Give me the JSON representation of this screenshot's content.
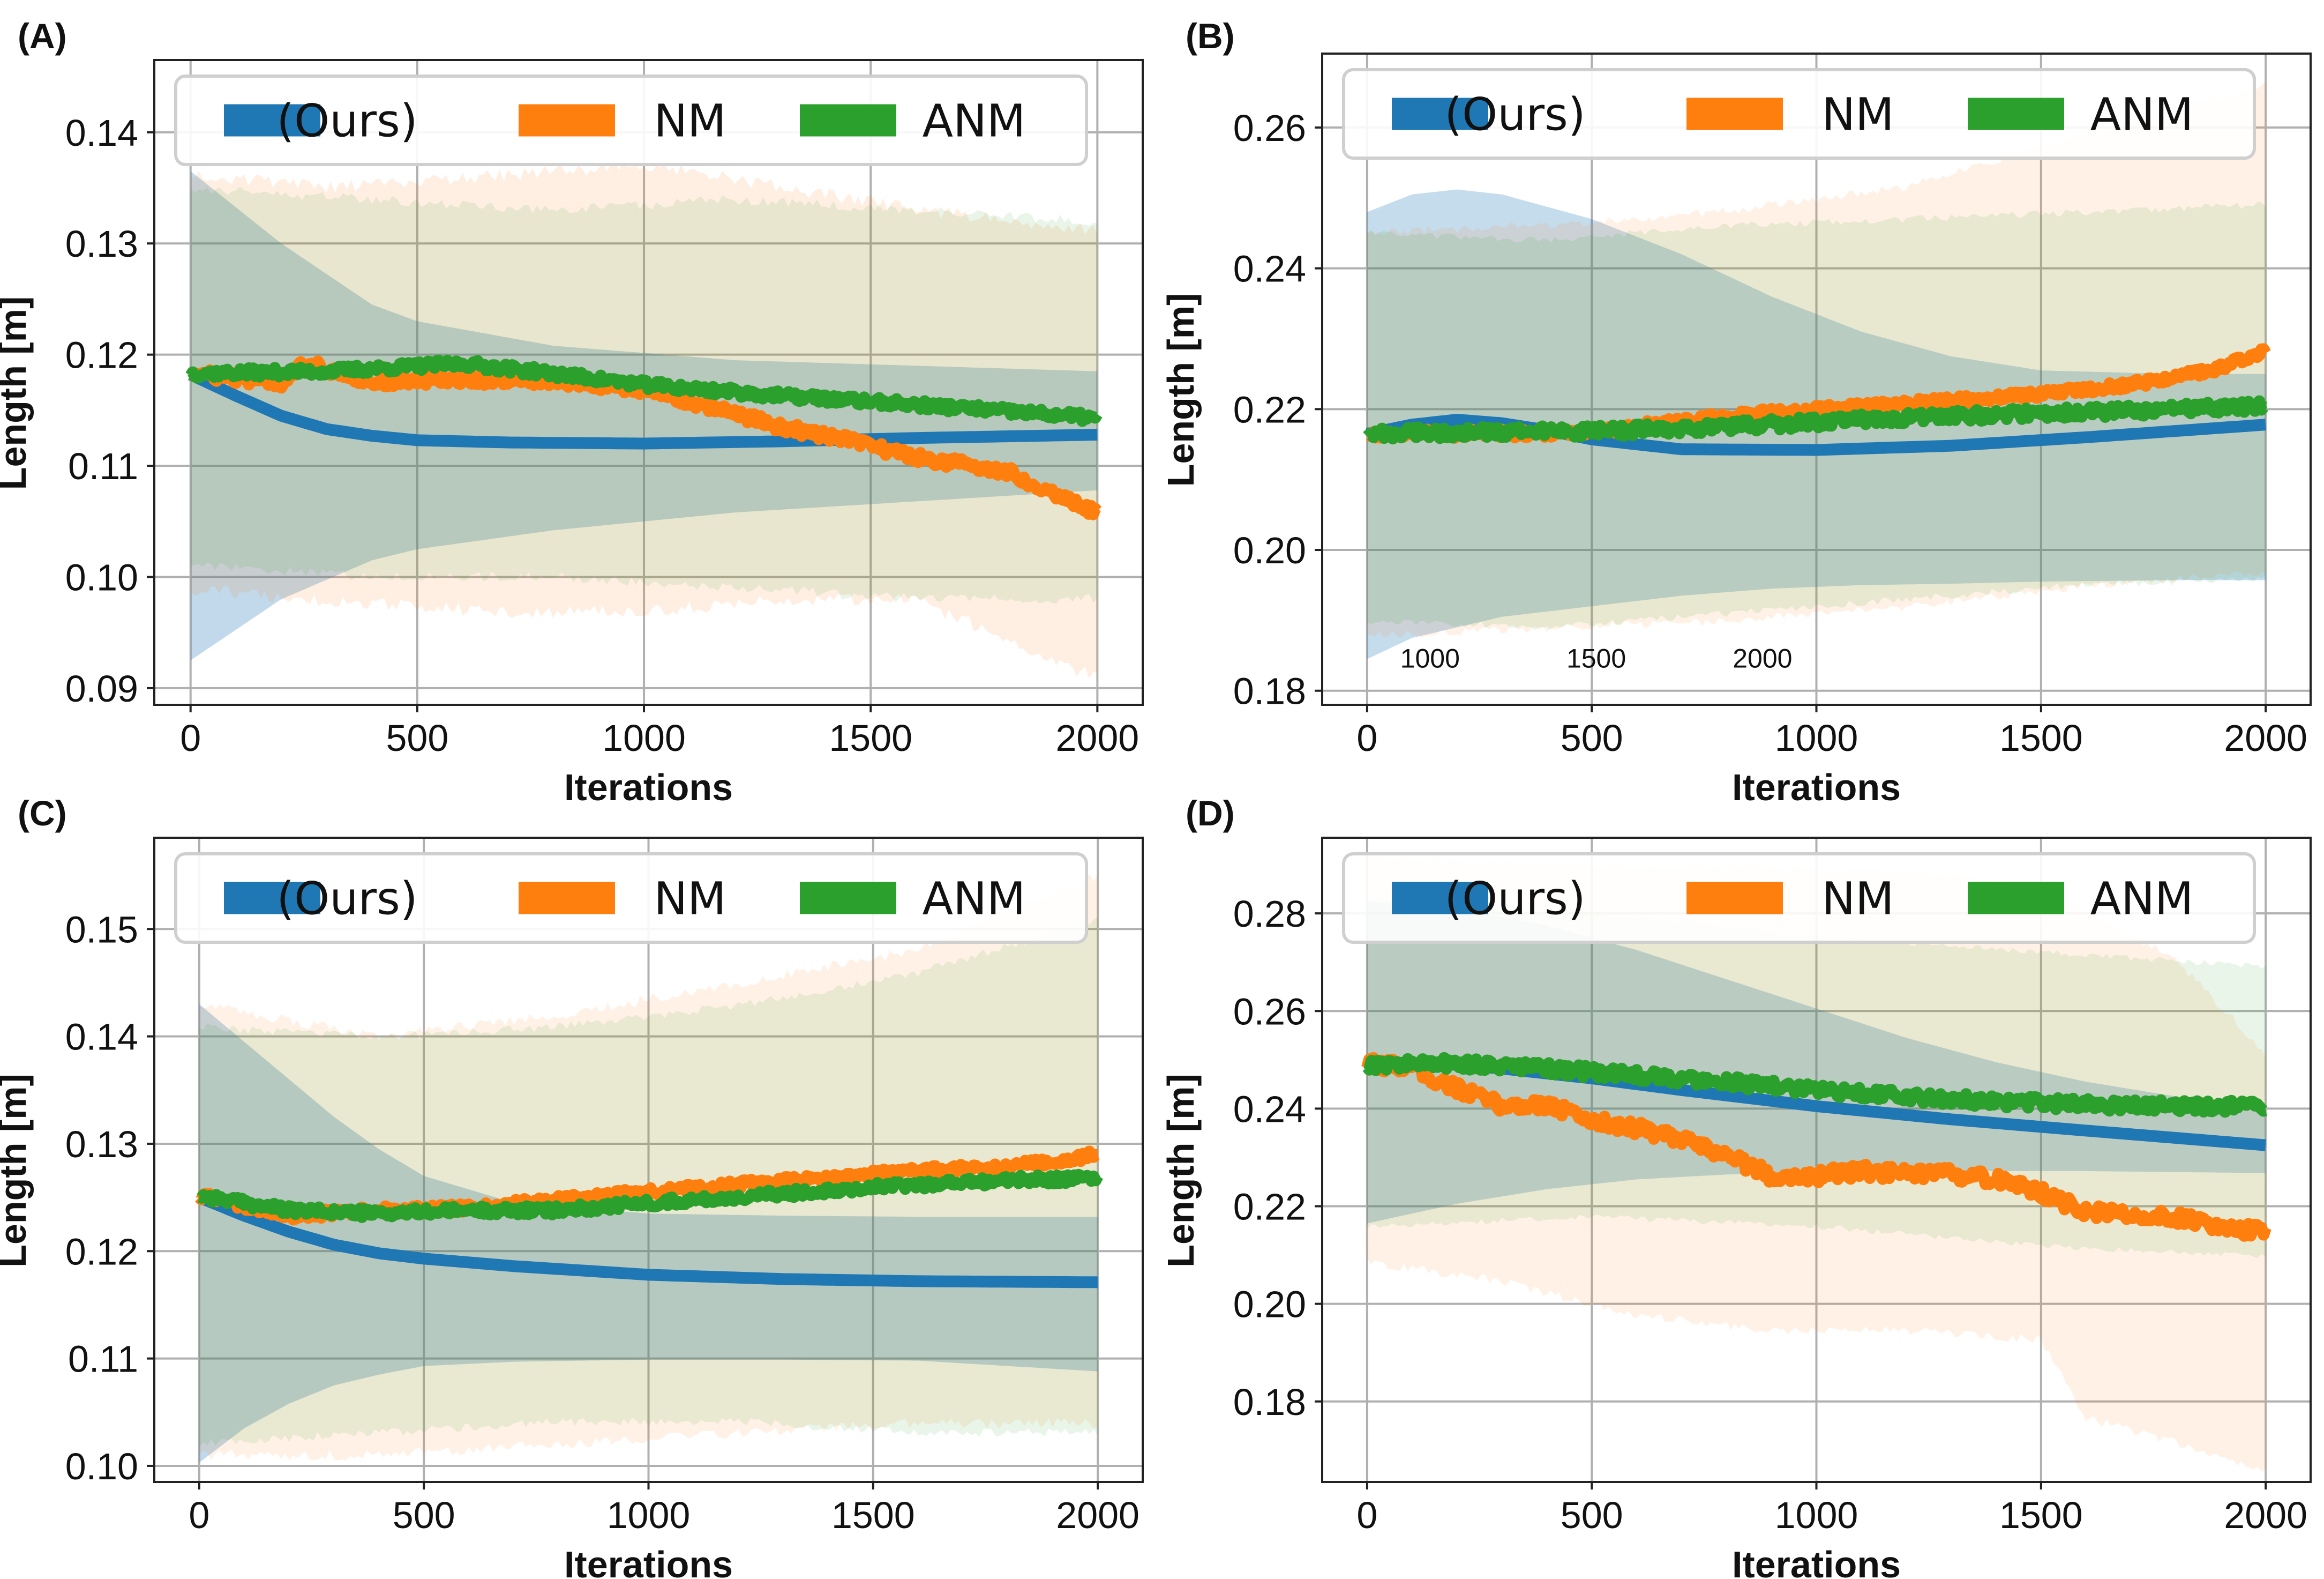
{
  "figure": {
    "colors": {
      "ours": "#1f77b4",
      "nm": "#ff7f0e",
      "anm": "#2ca02c",
      "grid": "#b0b0b0"
    }
  },
  "chart_data": [
    {
      "panel": "(A)",
      "type": "line",
      "xlabel": "Iterations",
      "ylabel": "Length [m]",
      "xlim": [
        -80,
        2100
      ],
      "ylim": [
        0.0885,
        0.1465
      ],
      "xticks": [
        0,
        500,
        1000,
        1500,
        2000
      ],
      "yticks": [
        0.09,
        0.1,
        0.11,
        0.12,
        0.13,
        0.14
      ],
      "ytick_labels": [
        "0.09",
        "0.10",
        "0.11",
        "0.12",
        "0.13",
        "0.14"
      ],
      "legend": [
        "(Ours)",
        "NM",
        "ANM"
      ],
      "legend_position": "top",
      "annotations": [],
      "series": [
        {
          "name": "(Ours)",
          "color": "#1f77b4",
          "x": [
            0,
            100,
            200,
            300,
            400,
            500,
            700,
            1000,
            1300,
            1600,
            2000
          ],
          "values": [
            0.1182,
            0.1163,
            0.1145,
            0.1133,
            0.1127,
            0.1123,
            0.1121,
            0.112,
            0.1122,
            0.1125,
            0.1128
          ],
          "noise": 0
        },
        {
          "name": "NM",
          "color": "#ff7f0e",
          "x": [
            0,
            200,
            250,
            400,
            600,
            800,
            1000,
            1150,
            1300,
            1450,
            1600,
            1800,
            2000
          ],
          "values": [
            0.1183,
            0.1175,
            0.1193,
            0.1175,
            0.1178,
            0.1177,
            0.1168,
            0.1153,
            0.1135,
            0.1123,
            0.1108,
            0.1095,
            0.1058
          ],
          "noise": 0.0005
        },
        {
          "name": "ANM",
          "color": "#2ca02c",
          "x": [
            0,
            300,
            600,
            800,
            1000,
            1300,
            1600,
            2000
          ],
          "values": [
            0.1183,
            0.1185,
            0.1192,
            0.1183,
            0.1173,
            0.1163,
            0.1155,
            0.1143
          ],
          "noise": 0.0004
        }
      ],
      "bands": [
        {
          "name": "(Ours)",
          "color": "#1f77b4",
          "x": [
            0,
            200,
            400,
            500,
            800,
            1200,
            1600,
            2000
          ],
          "upper": [
            0.1365,
            0.13,
            0.1245,
            0.123,
            0.1208,
            0.1195,
            0.119,
            0.1185
          ],
          "lower": [
            0.0925,
            0.098,
            0.1015,
            0.1025,
            0.1042,
            0.1058,
            0.1068,
            0.1078
          ],
          "opacity": 0.28,
          "jitter": 0
        },
        {
          "name": "NM",
          "color": "#ff7f0e",
          "x": [
            0,
            300,
            700,
            1000,
            1300,
            1600,
            2000
          ],
          "upper": [
            0.1355,
            0.1345,
            0.1355,
            0.1365,
            0.1345,
            0.1325,
            0.1305
          ],
          "lower": [
            0.0995,
            0.0985,
            0.0975,
            0.0975,
            0.0985,
            0.0985,
            0.0915
          ],
          "opacity": 0.12,
          "jitter": 0.0012
        },
        {
          "name": "ANM",
          "color": "#2ca02c",
          "x": [
            0,
            400,
            800,
            1200,
            1600,
            2000
          ],
          "upper": [
            0.1345,
            0.1335,
            0.1325,
            0.1335,
            0.1325,
            0.1315
          ],
          "lower": [
            0.1015,
            0.1005,
            0.1005,
            0.0995,
            0.0985,
            0.0985
          ],
          "opacity": 0.11,
          "jitter": 0.0009
        }
      ]
    },
    {
      "panel": "(B)",
      "type": "line",
      "xlabel": "Iterations",
      "ylabel": "Length [m]",
      "xlim": [
        -100,
        2100
      ],
      "ylim": [
        0.178,
        0.2705
      ],
      "xticks": [
        0,
        500,
        1000,
        1500,
        2000
      ],
      "yticks": [
        0.18,
        0.2,
        0.22,
        0.24,
        0.26
      ],
      "ytick_labels": [
        "0.18",
        "0.20",
        "0.22",
        "0.24",
        "0.26"
      ],
      "legend": [
        "(Ours)",
        "NM",
        "ANM"
      ],
      "legend_position": "top",
      "annotations": [
        {
          "text": "1000",
          "x": 140,
          "y": 0.1833
        },
        {
          "text": "1500",
          "x": 510,
          "y": 0.1833
        },
        {
          "text": "2000",
          "x": 880,
          "y": 0.1833
        }
      ],
      "series": [
        {
          "name": "(Ours)",
          "color": "#1f77b4",
          "x": [
            0,
            100,
            200,
            300,
            400,
            500,
            700,
            1000,
            1300,
            1600,
            2000
          ],
          "values": [
            0.2165,
            0.2178,
            0.2185,
            0.218,
            0.217,
            0.2157,
            0.2143,
            0.2142,
            0.2148,
            0.216,
            0.2178
          ],
          "noise": 0
        },
        {
          "name": "NM",
          "color": "#ff7f0e",
          "x": [
            0,
            300,
            500,
            700,
            900,
            1100,
            1300,
            1500,
            1700,
            1900,
            2000
          ],
          "values": [
            0.2165,
            0.2165,
            0.2168,
            0.2183,
            0.2195,
            0.2203,
            0.2212,
            0.2222,
            0.2235,
            0.2258,
            0.2285
          ],
          "noise": 0.0006
        },
        {
          "name": "ANM",
          "color": "#2ca02c",
          "x": [
            0,
            300,
            500,
            800,
            1100,
            1400,
            1700,
            2000
          ],
          "values": [
            0.2165,
            0.2168,
            0.2168,
            0.2175,
            0.2185,
            0.2192,
            0.2198,
            0.2205
          ],
          "noise": 0.0008
        }
      ],
      "bands": [
        {
          "name": "(Ours)",
          "color": "#1f77b4",
          "x": [
            0,
            100,
            200,
            300,
            500,
            700,
            900,
            1100,
            1300,
            1500,
            1800,
            2000
          ],
          "upper": [
            0.248,
            0.2505,
            0.2512,
            0.2505,
            0.247,
            0.242,
            0.236,
            0.231,
            0.2275,
            0.2255,
            0.225,
            0.225
          ],
          "lower": [
            0.1845,
            0.1875,
            0.189,
            0.1905,
            0.192,
            0.1935,
            0.1945,
            0.195,
            0.1952,
            0.1955,
            0.1957,
            0.1957
          ],
          "opacity": 0.26,
          "jitter": 0
        },
        {
          "name": "NM",
          "color": "#ff7f0e",
          "x": [
            0,
            400,
            800,
            1200,
            1600,
            2000
          ],
          "upper": [
            0.2445,
            0.2455,
            0.2475,
            0.251,
            0.2585,
            0.2655
          ],
          "lower": [
            0.1885,
            0.1895,
            0.1905,
            0.1925,
            0.1955,
            0.1975
          ],
          "opacity": 0.11,
          "jitter": 0.0012
        },
        {
          "name": "ANM",
          "color": "#2ca02c",
          "x": [
            0,
            400,
            800,
            1200,
            1600,
            2000
          ],
          "upper": [
            0.2445,
            0.2435,
            0.2455,
            0.2465,
            0.2475,
            0.2485
          ],
          "lower": [
            0.1905,
            0.1895,
            0.1915,
            0.1935,
            0.1955,
            0.1965
          ],
          "opacity": 0.11,
          "jitter": 0.001
        }
      ]
    },
    {
      "panel": "(C)",
      "type": "line",
      "xlabel": "Iterations",
      "ylabel": "Length [m]",
      "xlim": [
        -100,
        2100
      ],
      "ylim": [
        0.0985,
        0.1585
      ],
      "xticks": [
        0,
        500,
        1000,
        1500,
        2000
      ],
      "yticks": [
        0.1,
        0.11,
        0.12,
        0.13,
        0.14,
        0.15
      ],
      "ytick_labels": [
        "0.10",
        "0.11",
        "0.12",
        "0.13",
        "0.14",
        "0.15"
      ],
      "legend": [
        "(Ours)",
        "NM",
        "ANM"
      ],
      "legend_position": "top",
      "annotations": [],
      "series": [
        {
          "name": "(Ours)",
          "color": "#1f77b4",
          "x": [
            0,
            100,
            200,
            300,
            400,
            500,
            700,
            1000,
            1300,
            1600,
            2000
          ],
          "values": [
            0.125,
            0.1233,
            0.1218,
            0.1206,
            0.1198,
            0.1193,
            0.1186,
            0.1178,
            0.1174,
            0.1172,
            0.1171
          ],
          "noise": 0
        },
        {
          "name": "NM",
          "color": "#ff7f0e",
          "x": [
            0,
            200,
            400,
            600,
            800,
            1000,
            1200,
            1400,
            1600,
            1800,
            2000
          ],
          "values": [
            0.1252,
            0.1233,
            0.1238,
            0.124,
            0.1248,
            0.1255,
            0.1262,
            0.1268,
            0.1275,
            0.1278,
            0.129
          ],
          "noise": 0.0004
        },
        {
          "name": "ANM",
          "color": "#2ca02c",
          "x": [
            0,
            200,
            400,
            600,
            800,
            1000,
            1200,
            1400,
            1600,
            1800,
            2000
          ],
          "values": [
            0.1252,
            0.1238,
            0.1235,
            0.1238,
            0.1238,
            0.1245,
            0.125,
            0.1257,
            0.1262,
            0.1266,
            0.1268
          ],
          "noise": 0.0004
        }
      ],
      "bands": [
        {
          "name": "(Ours)",
          "color": "#1f77b4",
          "x": [
            0,
            100,
            200,
            300,
            400,
            500,
            700,
            1000,
            1300,
            1600,
            2000
          ],
          "upper": [
            0.143,
            0.1395,
            0.136,
            0.1325,
            0.1295,
            0.127,
            0.1245,
            0.1235,
            0.1233,
            0.1232,
            0.1232
          ],
          "lower": [
            0.1003,
            0.1035,
            0.1058,
            0.1075,
            0.1085,
            0.1093,
            0.1097,
            0.1099,
            0.1099,
            0.1098,
            0.1088
          ],
          "opacity": 0.28,
          "jitter": 0
        },
        {
          "name": "NM",
          "color": "#ff7f0e",
          "x": [
            0,
            400,
            800,
            1200,
            1600,
            2000
          ],
          "upper": [
            0.1425,
            0.1395,
            0.1415,
            0.1445,
            0.1475,
            0.1545
          ],
          "lower": [
            0.1015,
            0.1015,
            0.1025,
            0.1035,
            0.1045,
            0.1045
          ],
          "opacity": 0.11,
          "jitter": 0.001
        },
        {
          "name": "ANM",
          "color": "#2ca02c",
          "x": [
            0,
            400,
            800,
            1200,
            1600,
            2000
          ],
          "upper": [
            0.1405,
            0.1395,
            0.1405,
            0.1425,
            0.1455,
            0.1505
          ],
          "lower": [
            0.1025,
            0.1035,
            0.1045,
            0.1045,
            0.1035,
            0.1035
          ],
          "opacity": 0.1,
          "jitter": 0.0008
        }
      ]
    },
    {
      "panel": "(D)",
      "type": "line",
      "xlabel": "Iterations",
      "ylabel": "Length [m]",
      "xlim": [
        -100,
        2100
      ],
      "ylim": [
        0.1635,
        0.2955
      ],
      "xticks": [
        0,
        500,
        1000,
        1500,
        2000
      ],
      "yticks": [
        0.18,
        0.2,
        0.22,
        0.24,
        0.26,
        0.28
      ],
      "ytick_labels": [
        "0.18",
        "0.20",
        "0.22",
        "0.24",
        "0.26",
        "0.28"
      ],
      "legend": [
        "(Ours)",
        "NM",
        "ANM"
      ],
      "legend_position": "top",
      "annotations": [],
      "series": [
        {
          "name": "(Ours)",
          "color": "#1f77b4",
          "x": [
            0,
            100,
            200,
            300,
            400,
            500,
            700,
            1000,
            1300,
            1600,
            2000
          ],
          "values": [
            0.249,
            0.2493,
            0.249,
            0.2482,
            0.2472,
            0.2462,
            0.2438,
            0.2405,
            0.2378,
            0.2355,
            0.2325
          ],
          "noise": 0
        },
        {
          "name": "NM",
          "color": "#ff7f0e",
          "x": [
            0,
            100,
            150,
            300,
            400,
            500,
            600,
            700,
            800,
            900,
            1000,
            1100,
            1200,
            1300,
            1400,
            1500,
            1600,
            1800,
            2000
          ],
          "values": [
            0.249,
            0.2488,
            0.246,
            0.2405,
            0.241,
            0.2375,
            0.236,
            0.2335,
            0.2305,
            0.2262,
            0.2262,
            0.2272,
            0.2265,
            0.2265,
            0.2255,
            0.2228,
            0.2188,
            0.2178,
            0.2145
          ],
          "noise": 0.0014
        },
        {
          "name": "ANM",
          "color": "#2ca02c",
          "x": [
            0,
            200,
            400,
            600,
            800,
            1000,
            1200,
            1400,
            1600,
            1800,
            2000
          ],
          "values": [
            0.249,
            0.2493,
            0.2482,
            0.2468,
            0.2455,
            0.2438,
            0.2425,
            0.2415,
            0.2408,
            0.2405,
            0.2405
          ],
          "noise": 0.0012
        }
      ],
      "bands": [
        {
          "name": "(Ours)",
          "color": "#1f77b4",
          "x": [
            0,
            200,
            400,
            600,
            800,
            1000,
            1200,
            1400,
            1600,
            1800,
            2000
          ],
          "upper": [
            0.2825,
            0.281,
            0.2775,
            0.2725,
            0.2665,
            0.2605,
            0.2545,
            0.2495,
            0.2455,
            0.2425,
            0.2405
          ],
          "lower": [
            0.2165,
            0.2205,
            0.2235,
            0.2255,
            0.2265,
            0.227,
            0.2272,
            0.2272,
            0.2272,
            0.227,
            0.2268
          ],
          "opacity": 0.26,
          "jitter": 0
        },
        {
          "name": "NM",
          "color": "#ff7f0e",
          "x": [
            0,
            300,
            600,
            900,
            1200,
            1500,
            1600,
            1800,
            2000
          ],
          "upper": [
            0.2905,
            0.2895,
            0.2885,
            0.2885,
            0.2875,
            0.2855,
            0.2795,
            0.2695,
            0.2505
          ],
          "lower": [
            0.2095,
            0.2055,
            0.1985,
            0.1955,
            0.1955,
            0.1935,
            0.1775,
            0.1725,
            0.1665
          ],
          "opacity": 0.11,
          "jitter": 0.0018
        },
        {
          "name": "ANM",
          "color": "#2ca02c",
          "x": [
            0,
            500,
            1000,
            1500,
            2000
          ],
          "upper": [
            0.2825,
            0.2795,
            0.2745,
            0.2715,
            0.2685
          ],
          "lower": [
            0.2165,
            0.2185,
            0.2165,
            0.2125,
            0.2105
          ],
          "opacity": 0.1,
          "jitter": 0.0012
        }
      ]
    }
  ]
}
